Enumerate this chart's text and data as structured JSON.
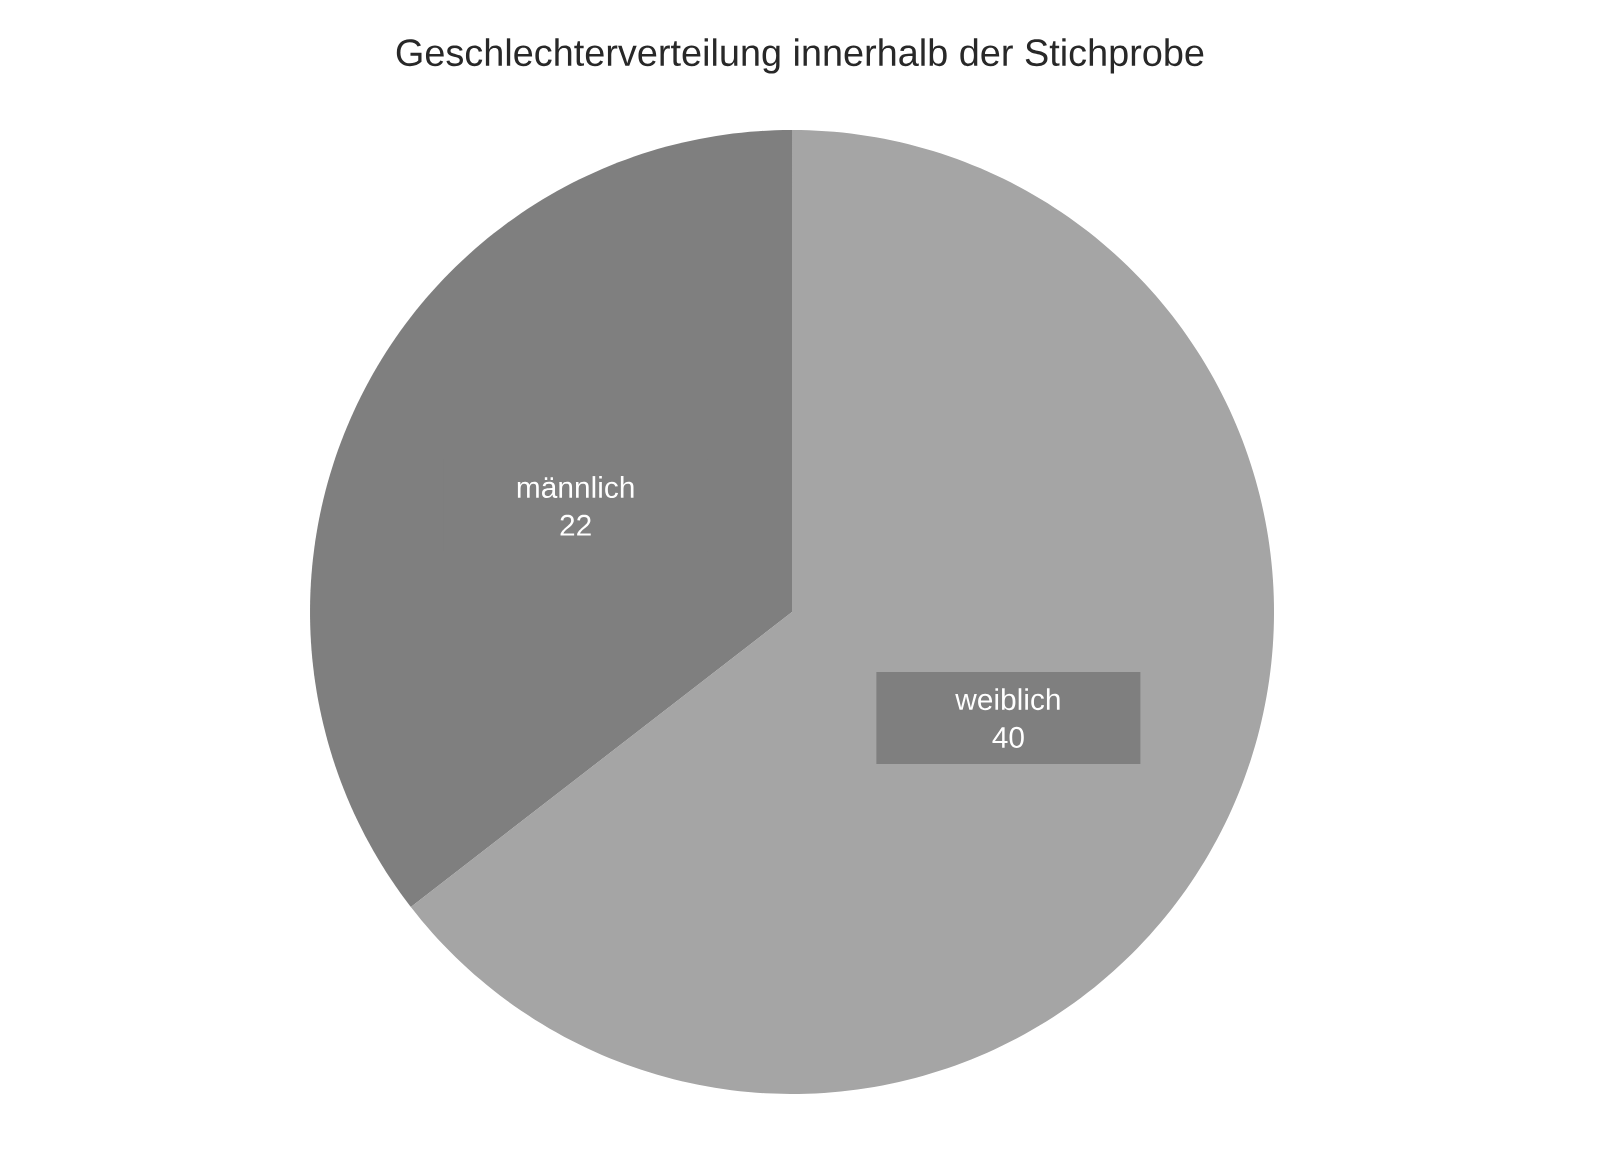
{
  "chart_data": {
    "type": "pie",
    "title": "Geschlechterverteilung innerhalb der Stichprobe",
    "categories": [
      "weiblich",
      "männlich"
    ],
    "values": [
      40,
      22
    ],
    "colors": [
      "#a5a5a5",
      "#7f7f7f"
    ],
    "data_labels": true
  }
}
